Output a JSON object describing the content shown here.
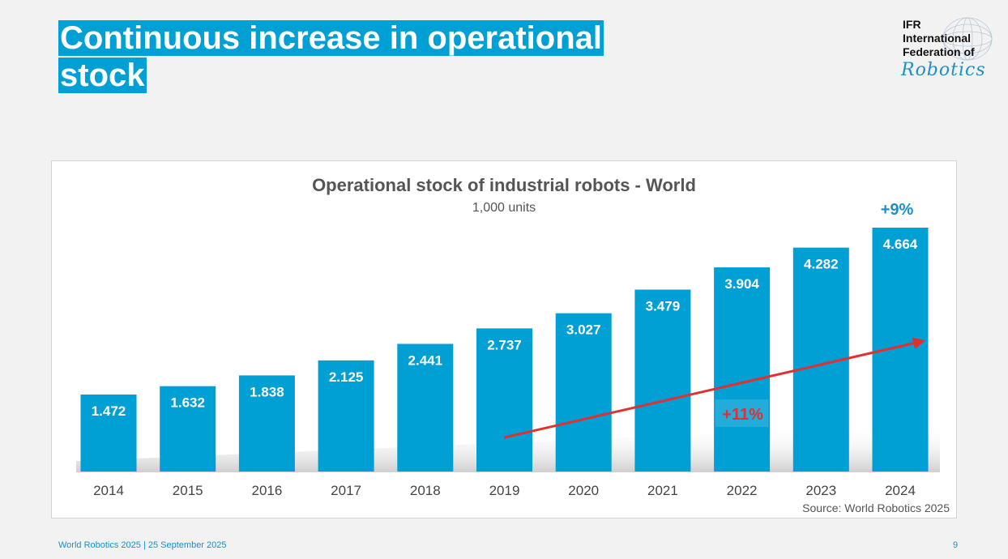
{
  "slide": {
    "title": "Continuous increase in operational stock",
    "title_lines": [
      "Continuous increase in operational ",
      "stock"
    ],
    "footer": "World Robotics 2025  | 25 September 2025",
    "page_number": "9"
  },
  "logo": {
    "lines": [
      "IFR",
      "International",
      "Federation of"
    ],
    "script": "Robotics"
  },
  "chart_data": {
    "type": "bar",
    "title": "Operational stock of industrial robots - World",
    "subtitle": "1,000 units",
    "categories": [
      "2014",
      "2015",
      "2016",
      "2017",
      "2018",
      "2019",
      "2020",
      "2021",
      "2022",
      "2023",
      "2024"
    ],
    "values": [
      1472,
      1632,
      1838,
      2125,
      2441,
      2737,
      3027,
      3479,
      3904,
      4282,
      4664
    ],
    "value_labels": [
      "1.472",
      "1.632",
      "1.838",
      "2.125",
      "2.441",
      "2.737",
      "3.027",
      "3.479",
      "3.904",
      "4.282",
      "4.664"
    ],
    "ylim": [
      0,
      5000
    ],
    "grid": false,
    "bar_color": "#009fd4",
    "annotations": {
      "growth_last_year": "+9%",
      "growth_last_year_color": "#1a8fc9",
      "cagr": "+11%",
      "cagr_color": "#e03030",
      "trend_arrow_from": "2019",
      "trend_arrow_to": "2024"
    },
    "source": "Source: World Robotics 2025"
  }
}
